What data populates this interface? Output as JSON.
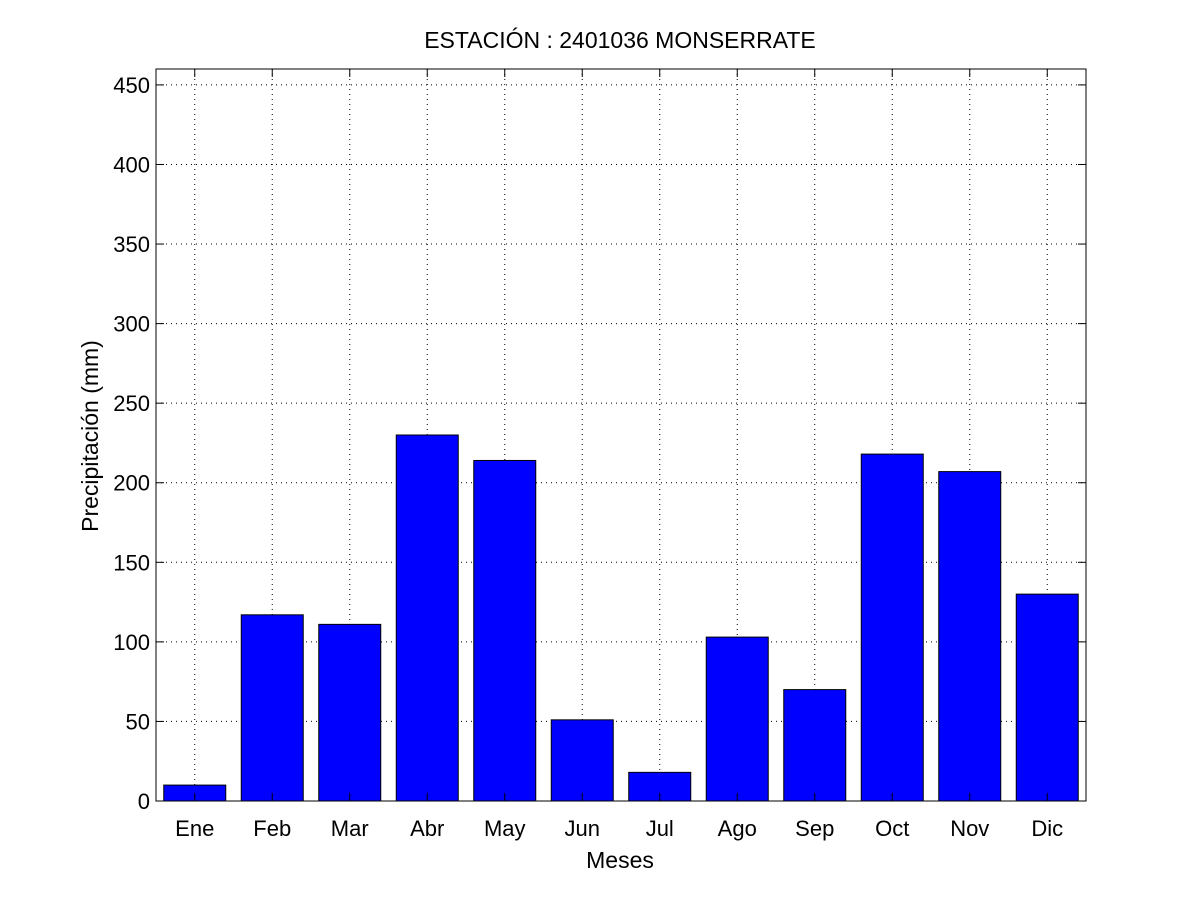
{
  "chart_data": {
    "type": "bar",
    "title": "ESTACIÓN :  2401036  MONSERRATE",
    "xlabel": "Meses",
    "ylabel": "Precipitación (mm)",
    "categories": [
      "Ene",
      "Feb",
      "Mar",
      "Abr",
      "May",
      "Jun",
      "Jul",
      "Ago",
      "Sep",
      "Oct",
      "Nov",
      "Dic"
    ],
    "values": [
      10,
      117,
      111,
      230,
      214,
      51,
      18,
      103,
      70,
      218,
      207,
      130
    ],
    "ylim": [
      0,
      460
    ],
    "yticks": [
      0,
      50,
      100,
      150,
      200,
      250,
      300,
      350,
      400,
      450
    ],
    "grid": true,
    "bar_color": "#0000ff",
    "edge_color": "#000000"
  }
}
